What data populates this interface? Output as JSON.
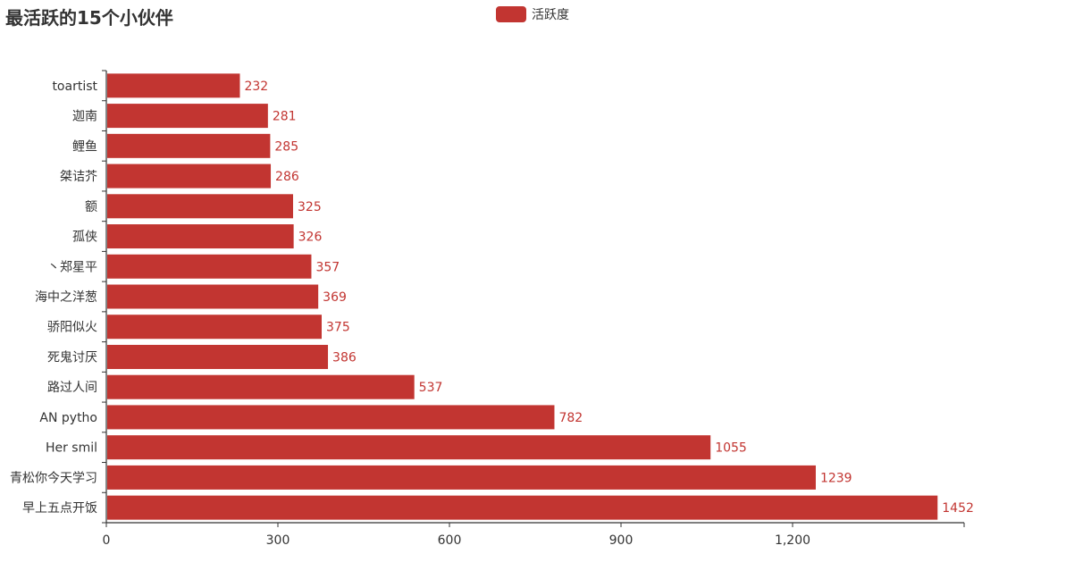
{
  "chart_data": {
    "type": "bar",
    "orientation": "horizontal",
    "title": "最活跃的15个小伙伴",
    "legend": {
      "label": "活跃度",
      "position": "top"
    },
    "series": [
      {
        "name": "活跃度",
        "color": "#c23531",
        "values": [
          1452,
          1239,
          1055,
          782,
          537,
          386,
          375,
          369,
          357,
          326,
          325,
          286,
          285,
          281,
          232
        ]
      }
    ],
    "categories": [
      "早上五点开饭",
      "青松你今天学习",
      "Her smil",
      "AN pytho",
      "路过人间",
      "死鬼讨厌",
      "骄阳似火",
      "海中之洋葱",
      "丶郑星平",
      "孤侠",
      "额",
      "桀诘芥",
      "鲤鱼",
      "迦南",
      "toartist"
    ],
    "xlim": [
      0,
      1500
    ],
    "xticks": [
      0,
      300,
      600,
      900,
      1200
    ],
    "xtick_labels": [
      "0",
      "300",
      "600",
      "900",
      "1,200"
    ],
    "grid": false,
    "data_labels": true
  },
  "colors": {
    "bar": "#c23531",
    "axis": "#333333",
    "text": "#333333"
  }
}
